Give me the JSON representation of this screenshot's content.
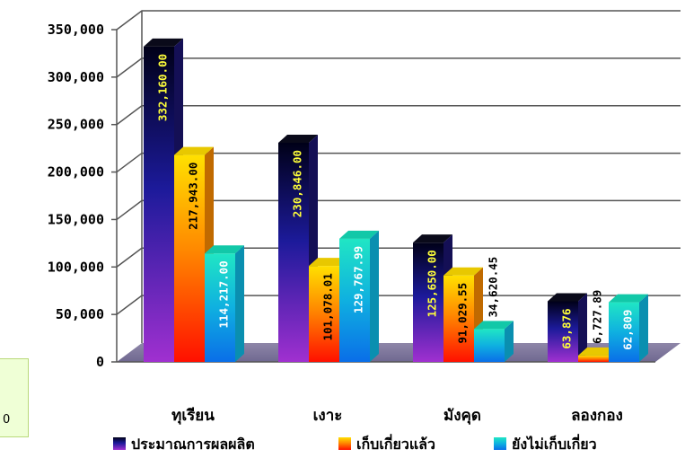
{
  "chart_data": {
    "type": "bar",
    "categories": [
      "ทุเรียน",
      "เงาะ",
      "มังคุด",
      "ลองกอง"
    ],
    "series": [
      {
        "name": "ประมาณการผลผลิต",
        "values": [
          332160.0,
          230846.0,
          125650.0,
          63876
        ],
        "labels": [
          "332,160.00",
          "230,846.00",
          "125,650.00",
          "63,876"
        ]
      },
      {
        "name": "เก็บเกี่ยวแล้ว",
        "values": [
          217943.0,
          101078.01,
          91029.55,
          6727.89
        ],
        "labels": [
          "217,943.00",
          "101,078.01",
          "91,029.55",
          "6,727.89"
        ]
      },
      {
        "name": "ยังไม่เก็บเกี่ยว",
        "values": [
          114217.0,
          129767.99,
          34620.45,
          62809
        ],
        "labels": [
          "114,217.00",
          "129,767.99",
          "34,620.45",
          "62,809"
        ]
      }
    ],
    "yticks": [
      "0",
      "50,000",
      "100,000",
      "150,000",
      "200,000",
      "250,000",
      "300,000",
      "350,000"
    ],
    "ylim": [
      0,
      350000
    ],
    "grid": true,
    "legend": "bottom",
    "colors": {
      "series0": [
        "#000010",
        "#9b2fd0"
      ],
      "series1": [
        "#ffd400",
        "#ff1a00"
      ],
      "series2": [
        "#1fe0c0",
        "#0a7fe8"
      ]
    }
  },
  "side_box": {
    "text": "0"
  }
}
